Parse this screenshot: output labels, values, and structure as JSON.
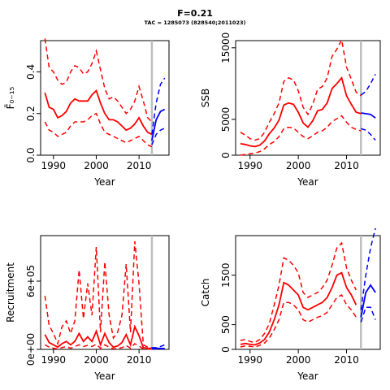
{
  "figure": {
    "title": "F=0.21",
    "subtitle": "TAC = 1285073 (828540;2011023)"
  },
  "colors": {
    "historic": "#ff0000",
    "projection": "#0000ff",
    "divider": "#bebebe",
    "axis": "#000000"
  },
  "chart_data": [
    {
      "id": "fbar",
      "type": "line",
      "xlabel": "Year",
      "ylabel": "F̄₀₋₁₅",
      "xlim": [
        1987,
        2017
      ],
      "ylim": [
        0,
        0.55
      ],
      "xticks": [
        1990,
        2000,
        2010
      ],
      "yticks": [
        0,
        0.2,
        0.4
      ],
      "ytick_labels": [
        "0.0",
        "0.2",
        "0.4"
      ],
      "ytick_rotation": -90,
      "divider_year": 2013,
      "historic": {
        "x": [
          1988,
          1989,
          1990,
          1991,
          1992,
          1993,
          1994,
          1995,
          1996,
          1997,
          1998,
          1999,
          2000,
          2001,
          2002,
          2003,
          2004,
          2005,
          2006,
          2007,
          2008,
          2009,
          2010,
          2011,
          2012,
          2013
        ],
        "median": [
          0.3,
          0.23,
          0.22,
          0.18,
          0.19,
          0.21,
          0.25,
          0.27,
          0.26,
          0.26,
          0.26,
          0.29,
          0.31,
          0.25,
          0.2,
          0.17,
          0.17,
          0.16,
          0.14,
          0.12,
          0.13,
          0.15,
          0.18,
          0.14,
          0.11,
          0.1
        ],
        "lower": [
          0.16,
          0.12,
          0.11,
          0.09,
          0.1,
          0.11,
          0.14,
          0.16,
          0.16,
          0.16,
          0.17,
          0.19,
          0.2,
          0.15,
          0.11,
          0.1,
          0.09,
          0.08,
          0.07,
          0.06,
          0.07,
          0.08,
          0.09,
          0.07,
          0.05,
          0.04
        ],
        "upper": [
          0.56,
          0.42,
          0.4,
          0.36,
          0.34,
          0.35,
          0.4,
          0.43,
          0.42,
          0.39,
          0.4,
          0.44,
          0.5,
          0.41,
          0.32,
          0.27,
          0.28,
          0.26,
          0.23,
          0.2,
          0.22,
          0.26,
          0.33,
          0.26,
          0.18,
          0.16
        ]
      },
      "projection": {
        "x": [
          2013,
          2014,
          2015,
          2016
        ],
        "median": [
          0.07,
          0.17,
          0.21,
          0.22
        ],
        "lower": [
          0.05,
          0.1,
          0.12,
          0.13
        ],
        "upper": [
          0.1,
          0.25,
          0.34,
          0.37
        ]
      }
    },
    {
      "id": "ssb",
      "type": "line",
      "xlabel": "Year",
      "ylabel": "SSB",
      "xlim": [
        1987,
        2017
      ],
      "ylim": [
        0,
        16000
      ],
      "xticks": [
        1990,
        2000,
        2010
      ],
      "yticks": [
        0,
        5000,
        15000
      ],
      "ytick_labels": [
        "0",
        "5000",
        "15000"
      ],
      "ytick_rotation": -90,
      "divider_year": 2013,
      "historic": {
        "x": [
          1988,
          1989,
          1990,
          1991,
          1992,
          1993,
          1994,
          1995,
          1996,
          1997,
          1998,
          1999,
          2000,
          2001,
          2002,
          2003,
          2004,
          2005,
          2006,
          2007,
          2008,
          2009,
          2010,
          2011,
          2012,
          2013
        ],
        "median": [
          1600,
          1500,
          1300,
          1200,
          1400,
          2000,
          3000,
          3800,
          4900,
          7000,
          7300,
          7100,
          6000,
          4500,
          3900,
          4800,
          6200,
          6400,
          7300,
          9300,
          10000,
          10800,
          8300,
          7100,
          6000,
          5800
        ],
        "lower": [
          0,
          100,
          200,
          300,
          500,
          900,
          1500,
          1900,
          2600,
          3700,
          3900,
          3800,
          3200,
          2600,
          2300,
          2700,
          3200,
          3400,
          3900,
          4700,
          5100,
          5500,
          4600,
          3900,
          3600,
          3400
        ],
        "upper": [
          3200,
          2800,
          2300,
          2100,
          2300,
          3200,
          4600,
          5800,
          7300,
          10300,
          10800,
          10500,
          9000,
          6700,
          5700,
          7100,
          9200,
          9600,
          10800,
          13800,
          14800,
          16100,
          12300,
          10600,
          8800,
          8300
        ]
      },
      "projection": {
        "x": [
          2013,
          2014,
          2015,
          2016
        ],
        "median": [
          5900,
          5800,
          5700,
          5200
        ],
        "lower": [
          3700,
          3500,
          2900,
          2100
        ],
        "upper": [
          8400,
          8900,
          10000,
          11300
        ]
      }
    },
    {
      "id": "recruitment",
      "type": "line",
      "xlabel": "Year",
      "ylabel": "Recruitment",
      "xlim": [
        1987,
        2017
      ],
      "ylim": [
        0,
        1000000
      ],
      "xticks": [
        1990,
        2000,
        2010
      ],
      "yticks": [
        0,
        600000
      ],
      "ytick_labels": [
        "0e+00",
        "6e+05"
      ],
      "ytick_rotation": -90,
      "divider_year": 2013,
      "historic": {
        "x": [
          1988,
          1989,
          1990,
          1991,
          1992,
          1993,
          1994,
          1995,
          1996,
          1997,
          1998,
          1999,
          2000,
          2001,
          2002,
          2003,
          2004,
          2005,
          2006,
          2007,
          2008,
          2009,
          2010,
          2011,
          2012,
          2013
        ],
        "median": [
          130000,
          60000,
          40000,
          20000,
          50000,
          70000,
          40000,
          70000,
          140000,
          70000,
          110000,
          70000,
          160000,
          40000,
          140000,
          60000,
          20000,
          30000,
          60000,
          130000,
          40000,
          200000,
          120000,
          15000,
          10000,
          8000
        ],
        "lower": [
          40000,
          20000,
          10000,
          5000,
          15000,
          25000,
          10000,
          25000,
          40000,
          25000,
          35000,
          25000,
          45000,
          10000,
          40000,
          20000,
          5000,
          8000,
          15000,
          35000,
          10000,
          50000,
          30000,
          4000,
          3000,
          2000
        ],
        "upper": [
          470000,
          210000,
          140000,
          50000,
          200000,
          250000,
          140000,
          250000,
          700000,
          270000,
          580000,
          300000,
          900000,
          150000,
          770000,
          300000,
          100000,
          150000,
          300000,
          750000,
          150000,
          950000,
          580000,
          40000,
          20000,
          15000
        ]
      },
      "projection": {
        "x": [
          2013,
          2014,
          2015,
          2016
        ],
        "median": [
          10000,
          9000,
          8000,
          8000
        ],
        "lower": [
          5000,
          4000,
          4000,
          4000
        ],
        "upper": [
          15000,
          15000,
          25000,
          40000
        ]
      }
    },
    {
      "id": "catch",
      "type": "line",
      "xlabel": "Year",
      "ylabel": "Catch",
      "xlim": [
        1987,
        2017
      ],
      "ylim": [
        0,
        2300
      ],
      "xticks": [
        1990,
        2000,
        2010
      ],
      "yticks": [
        0,
        500,
        1500
      ],
      "ytick_labels": [
        "0",
        "500",
        "1500"
      ],
      "ytick_rotation": -90,
      "divider_year": 2013,
      "historic": {
        "x": [
          1988,
          1989,
          1990,
          1991,
          1992,
          1993,
          1994,
          1995,
          1996,
          1997,
          1998,
          1999,
          2000,
          2001,
          2002,
          2003,
          2004,
          2005,
          2006,
          2007,
          2008,
          2009,
          2010,
          2011,
          2012
        ],
        "median": [
          100,
          120,
          100,
          90,
          130,
          200,
          350,
          600,
          900,
          1350,
          1300,
          1200,
          1100,
          850,
          800,
          850,
          900,
          950,
          1050,
          1250,
          1500,
          1550,
          1250,
          1100,
          900
        ],
        "lower": [
          50,
          70,
          60,
          50,
          80,
          130,
          230,
          400,
          600,
          950,
          950,
          900,
          800,
          600,
          550,
          600,
          650,
          680,
          750,
          900,
          1050,
          1100,
          900,
          800,
          650
        ],
        "upper": [
          180,
          200,
          160,
          140,
          200,
          320,
          520,
          900,
          1300,
          1850,
          1800,
          1700,
          1550,
          1150,
          1050,
          1100,
          1150,
          1250,
          1400,
          1700,
          2050,
          2150,
          1650,
          1400,
          1200
        ]
      },
      "projection": {
        "x": [
          2013,
          2014,
          2015,
          2016
        ],
        "median": [
          650,
          1150,
          1300,
          1150
        ],
        "lower": [
          550,
          850,
          850,
          600
        ],
        "upper": [
          800,
          1500,
          2050,
          2450
        ]
      }
    }
  ]
}
